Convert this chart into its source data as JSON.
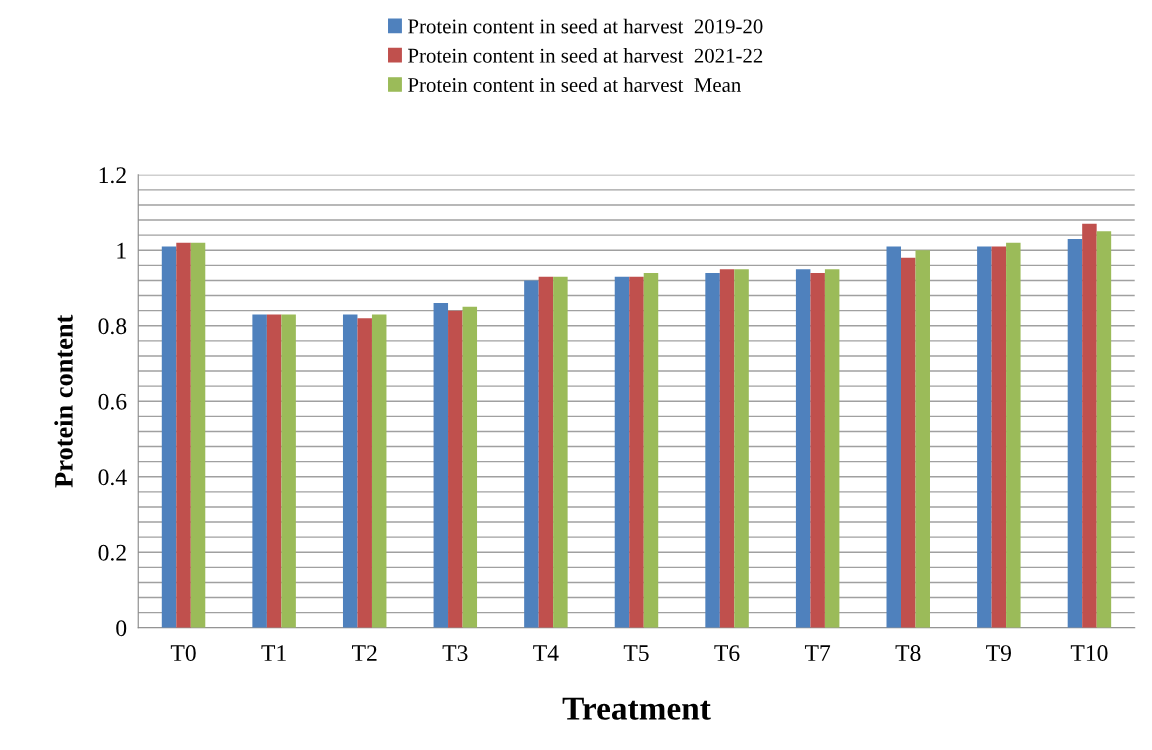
{
  "chart_data": {
    "type": "bar",
    "xlabel": "Treatment",
    "ylabel": "Protein content",
    "categories": [
      "T0",
      "T1",
      "T2",
      "T3",
      "T4",
      "T5",
      "T6",
      "T7",
      "T8",
      "T9",
      "T10"
    ],
    "series": [
      {
        "name": "Protein content in seed at harvest  2019-20",
        "color": "#4f81bd",
        "values": [
          1.01,
          0.83,
          0.83,
          0.86,
          0.92,
          0.93,
          0.94,
          0.95,
          1.01,
          1.01,
          1.03
        ]
      },
      {
        "name": "Protein content in seed at harvest  2021-22",
        "color": "#c0504d",
        "values": [
          1.02,
          0.83,
          0.82,
          0.84,
          0.93,
          0.93,
          0.95,
          0.94,
          0.98,
          1.01,
          1.07
        ]
      },
      {
        "name": "Protein content in seed at harvest  Mean",
        "color": "#9bbb59",
        "values": [
          1.02,
          0.83,
          0.83,
          0.85,
          0.93,
          0.94,
          0.95,
          0.95,
          1.0,
          1.02,
          1.05
        ]
      }
    ],
    "ylim": [
      0,
      1.2
    ],
    "yticks": [
      0,
      {
        "value": 0.04,
        "label": null
      },
      {
        "value": 0.08,
        "label": null
      },
      {
        "value": 0.12,
        "label": null
      },
      {
        "value": 0.16,
        "label": null
      },
      0.2,
      {
        "value": 0.24,
        "label": null
      },
      {
        "value": 0.28,
        "label": null
      },
      {
        "value": 0.32,
        "label": null
      },
      {
        "value": 0.36,
        "label": null
      },
      0.4,
      {
        "value": 0.44,
        "label": null
      },
      {
        "value": 0.48,
        "label": null
      },
      {
        "value": 0.52,
        "label": null
      },
      {
        "value": 0.56,
        "label": null
      },
      0.6,
      {
        "value": 0.64,
        "label": null
      },
      {
        "value": 0.68,
        "label": null
      },
      {
        "value": 0.72,
        "label": null
      },
      {
        "value": 0.76,
        "label": null
      },
      0.8,
      {
        "value": 0.84,
        "label": null
      },
      {
        "value": 0.88,
        "label": null
      },
      {
        "value": 0.92,
        "label": null
      },
      {
        "value": 0.96,
        "label": null
      },
      1,
      {
        "value": 1.04,
        "label": null
      },
      {
        "value": 1.08,
        "label": null
      },
      {
        "value": 1.12,
        "label": null
      },
      {
        "value": 1.16,
        "label": null
      },
      1.2
    ],
    "grid": "y",
    "legend": "top"
  }
}
